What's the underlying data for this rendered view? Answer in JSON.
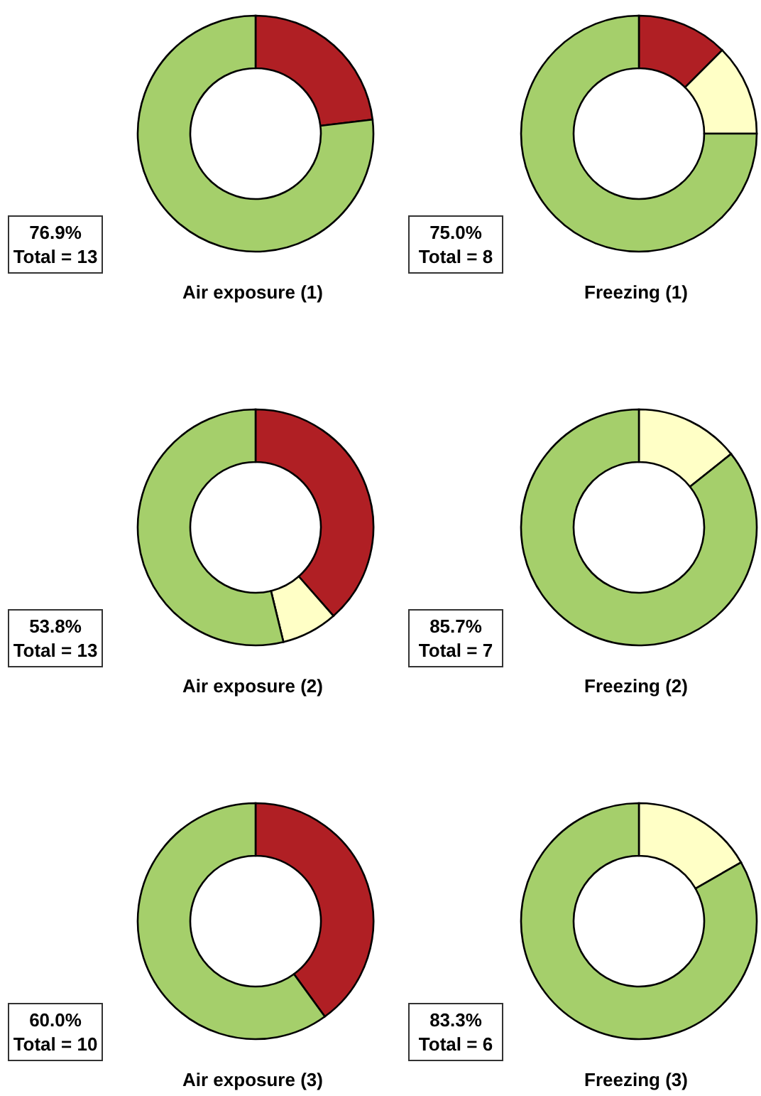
{
  "chart_data": [
    {
      "type": "donut",
      "title": "Air exposure (1)",
      "categories": [
        null,
        null
      ],
      "values": [
        23.1,
        76.9
      ],
      "colors": [
        "#b01f24",
        "#a5cf6b"
      ],
      "annotations": [
        "76.9%",
        "Total = 13"
      ]
    },
    {
      "type": "donut",
      "title": "Freezing (1)",
      "categories": [
        null,
        null,
        null
      ],
      "values": [
        12.5,
        12.5,
        75.0
      ],
      "colors": [
        "#b01f24",
        "#ffffc6",
        "#a5cf6b"
      ],
      "annotations": [
        "75.0%",
        "Total = 8"
      ]
    },
    {
      "type": "donut",
      "title": "Air exposure (2)",
      "categories": [
        null,
        null,
        null
      ],
      "values": [
        38.5,
        7.7,
        53.8
      ],
      "colors": [
        "#b01f24",
        "#ffffc6",
        "#a5cf6b"
      ],
      "annotations": [
        "53.8%",
        "Total = 13"
      ]
    },
    {
      "type": "donut",
      "title": "Freezing (2)",
      "categories": [
        null,
        null
      ],
      "values": [
        14.3,
        85.7
      ],
      "colors": [
        "#ffffc6",
        "#a5cf6b"
      ],
      "annotations": [
        "85.7%",
        "Total = 7"
      ]
    },
    {
      "type": "donut",
      "title": "Air exposure (3)",
      "categories": [
        null,
        null
      ],
      "values": [
        40.0,
        60.0
      ],
      "colors": [
        "#b01f24",
        "#a5cf6b"
      ],
      "annotations": [
        "60.0%",
        "Total = 10"
      ]
    },
    {
      "type": "donut",
      "title": "Freezing (3)",
      "categories": [
        null,
        null
      ],
      "values": [
        16.7,
        83.3
      ],
      "colors": [
        "#ffffc6",
        "#a5cf6b"
      ],
      "annotations": [
        "83.3%",
        "Total = 6"
      ]
    }
  ]
}
